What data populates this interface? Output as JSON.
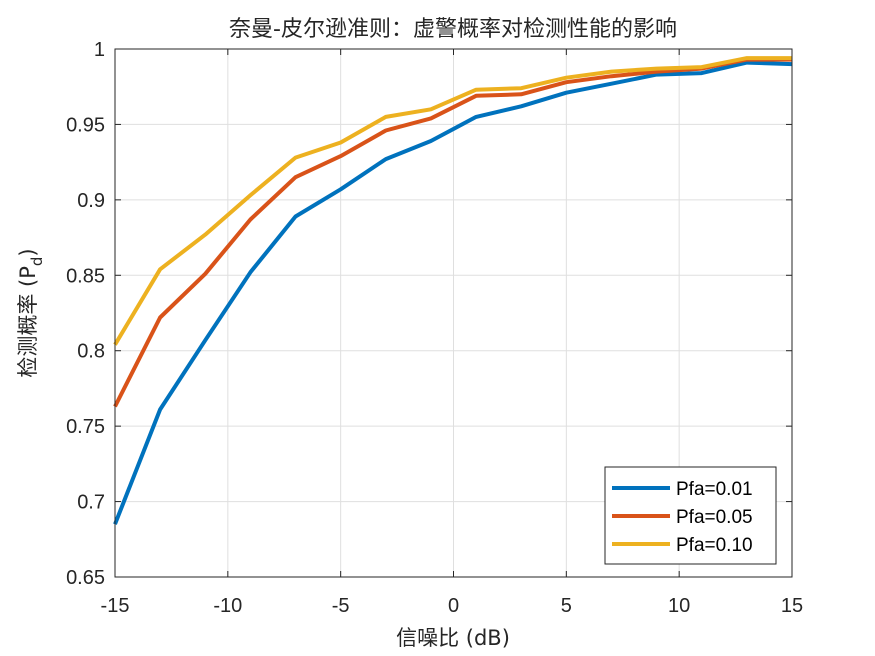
{
  "chart_data": {
    "type": "line",
    "title": "奈曼-皮尔逊准则：虚警概率对检测性能的影响",
    "xlabel": "信噪比 (dB)",
    "ylabel_main": "检测概率 (P",
    "ylabel_sub": "d",
    "ylabel_close": ")",
    "xlim": [
      -15,
      15
    ],
    "ylim": [
      0.65,
      1
    ],
    "xticks": [
      -15,
      -10,
      -5,
      0,
      5,
      10,
      15
    ],
    "yticks": [
      0.65,
      0.7,
      0.75,
      0.8,
      0.85,
      0.9,
      0.95,
      1
    ],
    "ytick_labels": [
      "0.65",
      "0.7",
      "0.75",
      "0.8",
      "0.85",
      "0.9",
      "0.95",
      "1"
    ],
    "grid": true,
    "legend_position": "bottom-right",
    "x": [
      -15,
      -13,
      -11,
      -9,
      -7,
      -5,
      -3,
      -1,
      1,
      3,
      5,
      7,
      9,
      11,
      13,
      15
    ],
    "series": [
      {
        "name": "Pfa=0.01",
        "color": "#0072BD",
        "values": [
          0.685,
          0.761,
          0.807,
          0.852,
          0.889,
          0.907,
          0.927,
          0.939,
          0.955,
          0.962,
          0.971,
          0.977,
          0.983,
          0.984,
          0.991,
          0.99
        ]
      },
      {
        "name": "Pfa=0.05",
        "color": "#D95319",
        "values": [
          0.763,
          0.822,
          0.851,
          0.887,
          0.915,
          0.929,
          0.946,
          0.954,
          0.969,
          0.97,
          0.978,
          0.982,
          0.985,
          0.987,
          0.993,
          0.993
        ]
      },
      {
        "name": "Pfa=0.10",
        "color": "#EDB120",
        "values": [
          0.804,
          0.854,
          0.877,
          0.903,
          0.928,
          0.938,
          0.955,
          0.96,
          0.973,
          0.974,
          0.981,
          0.985,
          0.987,
          0.988,
          0.994,
          0.994
        ]
      }
    ]
  }
}
